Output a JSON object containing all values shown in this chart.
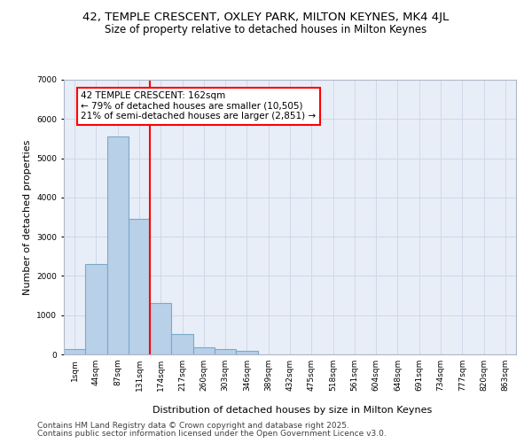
{
  "title_line1": "42, TEMPLE CRESCENT, OXLEY PARK, MILTON KEYNES, MK4 4JL",
  "title_line2": "Size of property relative to detached houses in Milton Keynes",
  "xlabel": "Distribution of detached houses by size in Milton Keynes",
  "ylabel": "Number of detached properties",
  "categories": [
    "1sqm",
    "44sqm",
    "87sqm",
    "131sqm",
    "174sqm",
    "217sqm",
    "260sqm",
    "303sqm",
    "346sqm",
    "389sqm",
    "432sqm",
    "475sqm",
    "518sqm",
    "561sqm",
    "604sqm",
    "648sqm",
    "691sqm",
    "734sqm",
    "777sqm",
    "820sqm",
    "863sqm"
  ],
  "values": [
    130,
    2300,
    5550,
    3450,
    1310,
    520,
    190,
    130,
    80,
    0,
    0,
    0,
    0,
    0,
    0,
    0,
    0,
    0,
    0,
    0,
    0
  ],
  "bar_color": "#b8d0e8",
  "bar_edge_color": "#7aaac8",
  "vline_color": "red",
  "vline_x": 3.5,
  "annotation_text": "42 TEMPLE CRESCENT: 162sqm\n← 79% of detached houses are smaller (10,505)\n21% of semi-detached houses are larger (2,851) →",
  "annotation_box_color": "red",
  "ylim": [
    0,
    7000
  ],
  "yticks": [
    0,
    1000,
    2000,
    3000,
    4000,
    5000,
    6000,
    7000
  ],
  "grid_color": "#d0d8e8",
  "bg_color": "#e8eef8",
  "footer_line1": "Contains HM Land Registry data © Crown copyright and database right 2025.",
  "footer_line2": "Contains public sector information licensed under the Open Government Licence v3.0.",
  "title_fontsize": 9.5,
  "subtitle_fontsize": 8.5,
  "axis_label_fontsize": 8,
  "tick_fontsize": 6.5,
  "annotation_fontsize": 7.5,
  "footer_fontsize": 6.5
}
